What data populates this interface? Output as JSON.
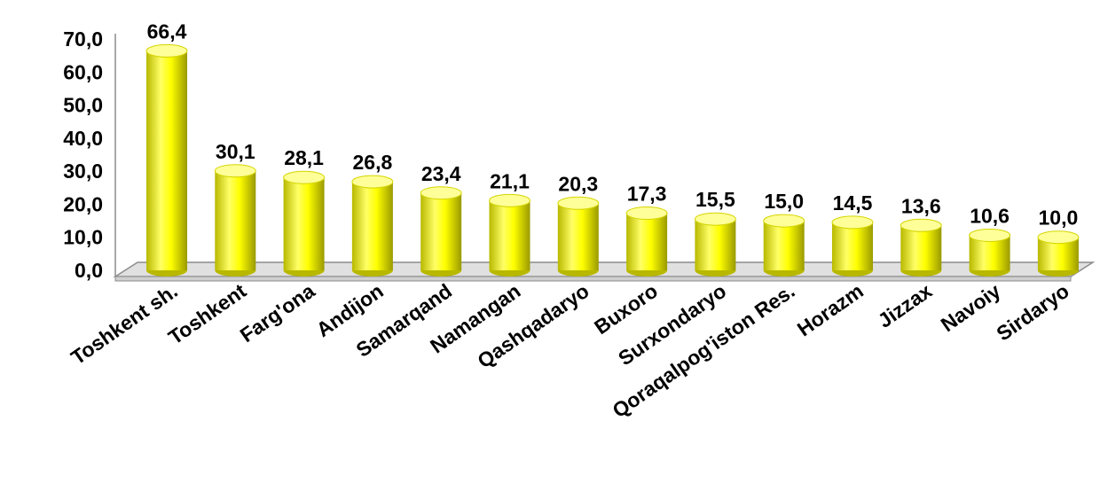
{
  "chart_data": {
    "type": "bar",
    "categories": [
      "Toshkent sh.",
      "Toshkent",
      "Farg'ona",
      "Andijon",
      "Samarqand",
      "Namangan",
      "Qashqadaryo",
      "Buxoro",
      "Surxondaryo",
      "Qoraqalpog'iston Res.",
      "Horazm",
      "Jizzax",
      "Navoiy",
      "Sirdaryo"
    ],
    "values": [
      66.4,
      30.1,
      28.1,
      26.8,
      23.4,
      21.1,
      20.3,
      17.3,
      15.5,
      15.0,
      14.5,
      13.6,
      10.6,
      10.0
    ],
    "data_labels": [
      "66,4",
      "30,1",
      "28,1",
      "26,8",
      "23,4",
      "21,1",
      "20,3",
      "17,3",
      "15,5",
      "15,0",
      "14,5",
      "13,6",
      "10,6",
      "10,0"
    ],
    "y_ticks": [
      0,
      10,
      20,
      30,
      40,
      50,
      60,
      70
    ],
    "y_tick_labels": [
      "0,0",
      "10,0",
      "20,0",
      "30,0",
      "40,0",
      "50,0",
      "60,0",
      "70,0"
    ],
    "ylim": [
      0,
      70
    ],
    "grid": false,
    "legend": "none",
    "bar_style": "3d-cylinder",
    "colors": {
      "bar_light": "#ffff66",
      "bar_mid": "#ffff00",
      "bar_dark": "#b8b800",
      "bar_top": "#ffff99",
      "floor": "#e0e0e0"
    }
  }
}
